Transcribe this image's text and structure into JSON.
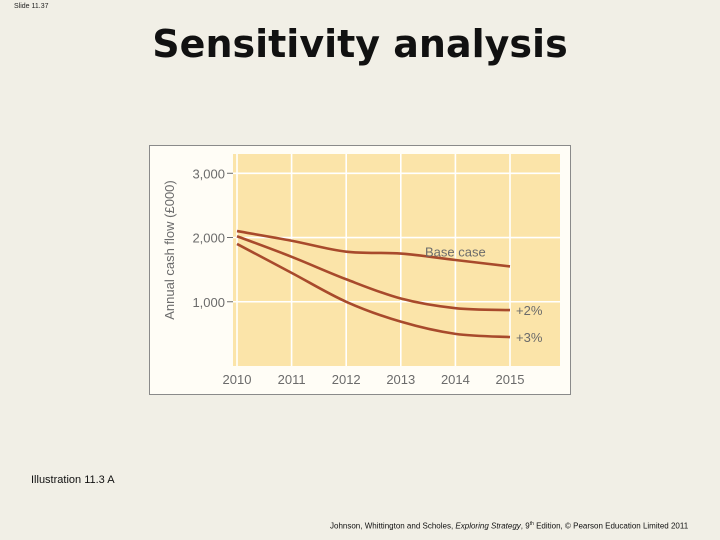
{
  "slide": {
    "number": "Slide 11.37",
    "title": "Sensitivity analysis",
    "caption": "Illustration 11.3 A",
    "credit": {
      "authors": "Johnson, Whittington and Scholes, ",
      "book": "Exploring Strategy",
      "edition_pre": ", 9",
      "edition_sup": "th",
      "edition_post": " Edition, © Pearson Education Limited 2011"
    }
  },
  "colors": {
    "plot_background": "#fbe4a9",
    "line": "#a84a2c",
    "grid": "#ffffff",
    "text": "#6b6b6b"
  },
  "chart_data": {
    "type": "line",
    "title": "",
    "xlabel": "",
    "ylabel": "Annual cash flow (£000)",
    "x": [
      2010,
      2011,
      2012,
      2013,
      2014,
      2015
    ],
    "x_tick_labels": [
      "2010",
      "2011",
      "2012",
      "2013",
      "2014",
      "2015"
    ],
    "ylim": [
      0,
      3300
    ],
    "y_ticks": [
      1000,
      2000,
      3000
    ],
    "y_tick_labels": [
      "1,000",
      "2,000",
      "3,000"
    ],
    "grid": true,
    "series": [
      {
        "name": "Base case",
        "values": [
          2100,
          1950,
          1780,
          1750,
          1650,
          1550
        ]
      },
      {
        "name": "+2%",
        "values": [
          2020,
          1700,
          1350,
          1050,
          900,
          870
        ]
      },
      {
        "name": "+3%",
        "values": [
          1900,
          1450,
          1000,
          690,
          500,
          450
        ]
      }
    ]
  }
}
